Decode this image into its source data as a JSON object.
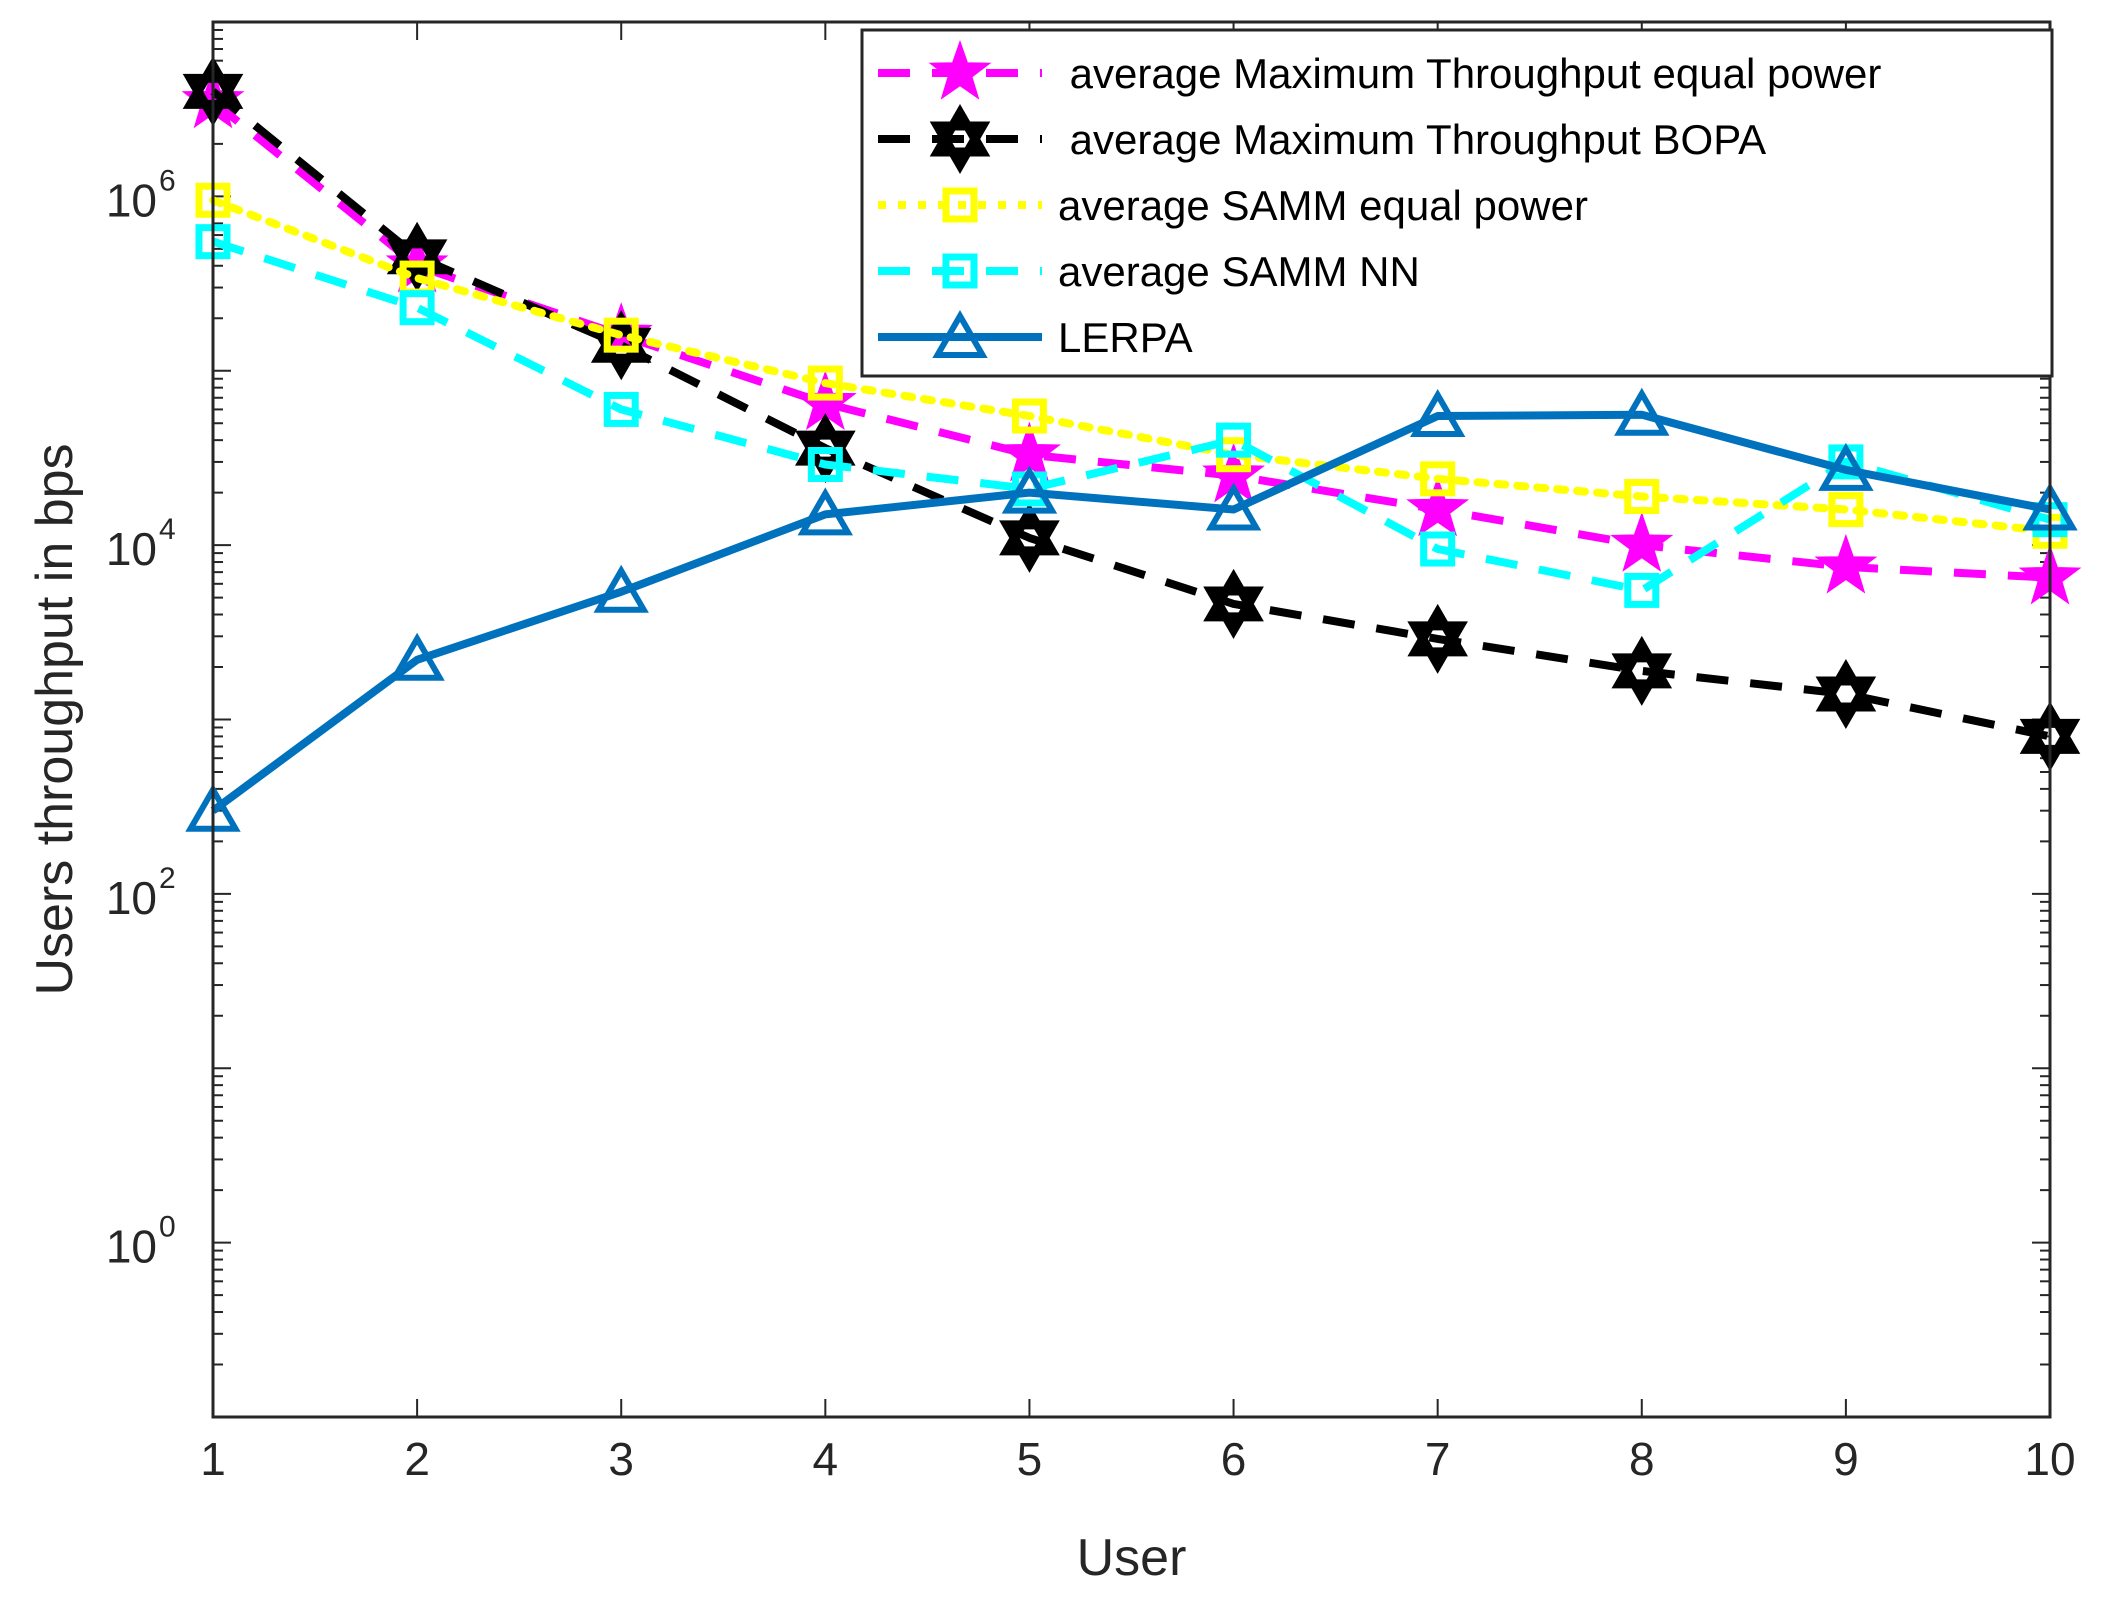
{
  "chart_data": {
    "type": "line",
    "title": "",
    "xlabel": "User",
    "ylabel": "Users throughput in bps",
    "yscale": "log",
    "xlim": [
      1,
      10
    ],
    "ylim": [
      0.1,
      10000000
    ],
    "x": [
      1,
      2,
      3,
      4,
      5,
      6,
      7,
      8,
      9,
      10
    ],
    "x_tick_labels": [
      "1",
      "2",
      "3",
      "4",
      "5",
      "6",
      "7",
      "8",
      "9",
      "10"
    ],
    "y_ticks": [
      {
        "value": 1,
        "base": "10",
        "exp": "0"
      },
      {
        "value": 100,
        "base": "10",
        "exp": "2"
      },
      {
        "value": 10000,
        "base": "10",
        "exp": "4"
      },
      {
        "value": 1000000,
        "base": "10",
        "exp": "6"
      }
    ],
    "legend_position": "top-right",
    "series": [
      {
        "name": "average Maximum Throughput equal power",
        "label": " average Maximum Throughput equal power",
        "color": "#ff00ff",
        "line_style": "dash",
        "marker": "star",
        "values": [
          3500000,
          400000,
          160000,
          65000,
          33000,
          25000,
          16000,
          10000,
          7500,
          6500
        ]
      },
      {
        "name": "average Maximum Throughput BOPA",
        "label": " average Maximum Throughput BOPA",
        "color": "#000000",
        "line_style": "dash",
        "marker": "hexagram",
        "values": [
          4000000,
          450000,
          140000,
          36000,
          11000,
          4600,
          2900,
          1900,
          1400,
          800
        ]
      },
      {
        "name": "average SAMM equal power",
        "label": "average SAMM equal power",
        "color": "#ffff00",
        "line_style": "dot",
        "marker": "square",
        "values": [
          950000,
          340000,
          160000,
          85000,
          55000,
          33000,
          24000,
          19000,
          16000,
          12000
        ]
      },
      {
        "name": "average SAMM NN",
        "label": "average SAMM NN",
        "color": "#00ffff",
        "line_style": "dash",
        "marker": "square",
        "values": [
          550000,
          230000,
          60000,
          29000,
          21000,
          40000,
          9500,
          5500,
          30000,
          14000
        ]
      },
      {
        "name": "LERPA",
        "label": "LERPA",
        "color": "#0072bd",
        "line_style": "solid",
        "marker": "triangle",
        "values": [
          300,
          2200,
          5400,
          15000,
          20000,
          16000,
          55000,
          56000,
          27000,
          16000
        ]
      }
    ]
  }
}
